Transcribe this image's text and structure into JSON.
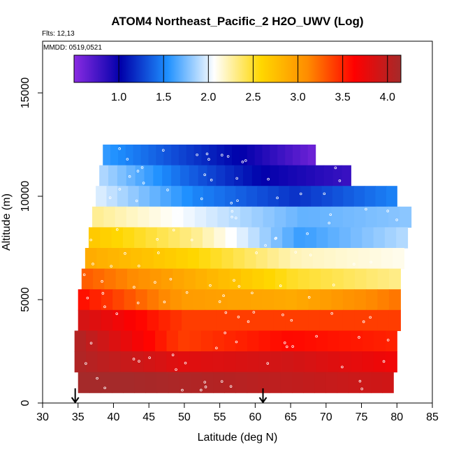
{
  "chart_data": {
    "type": "heatmap",
    "title": "ATOM4 Northeast_Pacific_2 H2O_UWV (Log)",
    "annotations": {
      "flights": "Flts: 12,13",
      "dates": "MMDD: 0519,0521"
    },
    "xlabel": "Latitude (deg N)",
    "ylabel": "Altitude (m)",
    "xlim": [
      30,
      85
    ],
    "ylim": [
      0,
      17500
    ],
    "x_ticks": [
      30,
      35,
      40,
      45,
      50,
      55,
      60,
      65,
      70,
      75,
      80,
      85
    ],
    "y_ticks": [
      0,
      5000,
      10000,
      15000
    ],
    "colorbar": {
      "min": 0.5,
      "max": 4.15,
      "ticks": [
        1.0,
        1.5,
        2.0,
        2.5,
        3.0,
        3.5,
        4.0
      ],
      "tick_labels": [
        "1.0",
        "1.5",
        "2.0",
        "2.5",
        "3.0",
        "3.5",
        "4.0"
      ],
      "colors": [
        "#8a2be2",
        "#0000aa",
        "#1e90ff",
        "#ffffff",
        "#ffd700",
        "#ff8c00",
        "#ff0000",
        "#a52a2a"
      ],
      "placement": "top, inside plot"
    },
    "altitude_bins": [
      {
        "alt": 12000,
        "lat_range": [
          38.5,
          68.5
        ],
        "log_h2o": [
          1.6,
          1.3,
          1.0,
          0.6
        ]
      },
      {
        "alt": 11000,
        "lat_range": [
          38.0,
          73.5
        ],
        "log_h2o": [
          1.9,
          1.4,
          1.0,
          0.8
        ]
      },
      {
        "alt": 10000,
        "lat_range": [
          37.5,
          80.0
        ],
        "log_h2o": [
          2.0,
          1.5,
          1.2,
          1.5
        ]
      },
      {
        "alt": 9000,
        "lat_range": [
          37.0,
          82.0
        ],
        "log_h2o": [
          2.3,
          2.0,
          1.7,
          1.8
        ]
      },
      {
        "alt": 8000,
        "lat_range": [
          36.5,
          81.5
        ],
        "log_h2o": [
          2.7,
          2.3,
          1.6,
          1.9
        ]
      },
      {
        "alt": 7000,
        "lat_range": [
          36.0,
          81.0
        ],
        "log_h2o": [
          2.9,
          2.6,
          2.2,
          2.1
        ]
      },
      {
        "alt": 6000,
        "lat_range": [
          35.5,
          80.5
        ],
        "log_h2o": [
          3.3,
          2.9,
          2.5,
          2.3
        ]
      },
      {
        "alt": 5000,
        "lat_range": [
          35.0,
          80.5
        ],
        "log_h2o": [
          3.6,
          3.0,
          2.9,
          3.2
        ]
      },
      {
        "alt": 4000,
        "lat_range": [
          35.0,
          80.5
        ],
        "log_h2o": [
          3.9,
          3.4,
          3.4,
          3.4
        ]
      },
      {
        "alt": 3000,
        "lat_range": [
          34.5,
          80.0
        ],
        "log_h2o": [
          4.1,
          3.4,
          3.6,
          3.5
        ]
      },
      {
        "alt": 2000,
        "lat_range": [
          34.5,
          80.0
        ],
        "log_h2o": [
          4.1,
          3.8,
          3.9,
          3.7
        ]
      },
      {
        "alt": 1000,
        "lat_range": [
          35.0,
          79.5
        ],
        "log_h2o": [
          4.2,
          4.1,
          4.0,
          3.9
        ]
      }
    ],
    "markers": [
      {
        "lat": 34.6,
        "label": "down-arrow"
      },
      {
        "lat": 61.1,
        "label": "down-arrow"
      }
    ]
  }
}
